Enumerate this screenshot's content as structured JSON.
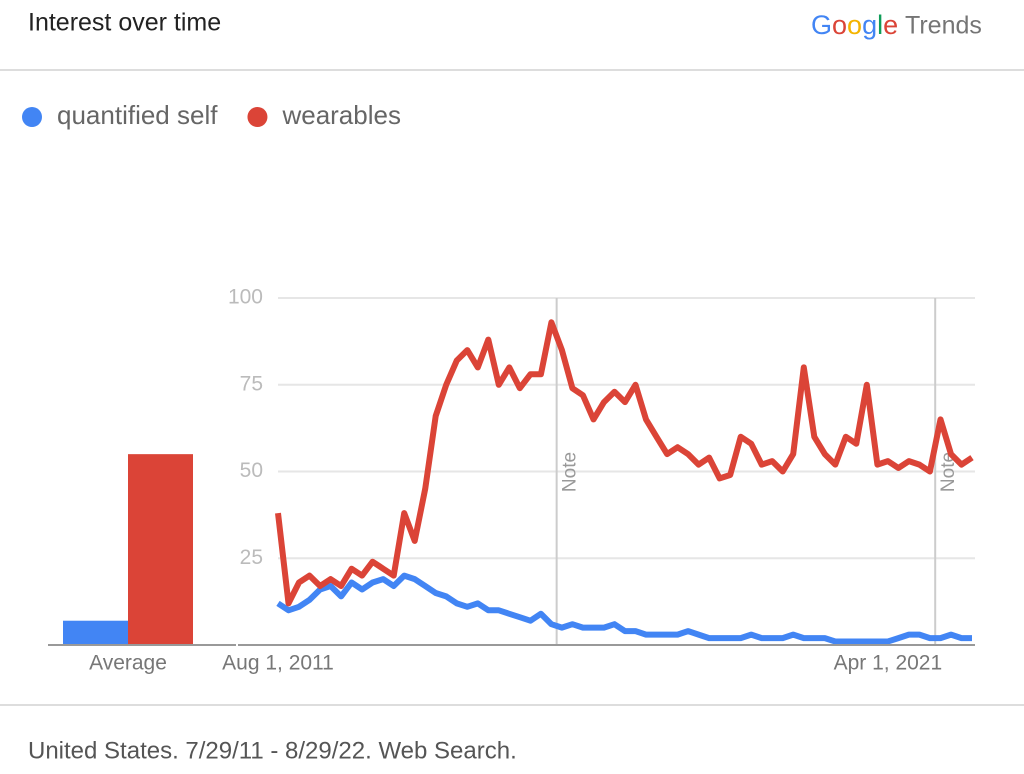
{
  "chart_data": {
    "type": "line",
    "title": "Interest over time",
    "brand": {
      "logo": "Google",
      "logo_colors": [
        "#4285f4",
        "#db4437",
        "#f4b400",
        "#4285f4",
        "#0f9d58",
        "#db4437"
      ],
      "product": "Trends"
    },
    "footer": "United States. 7/29/11 - 8/29/22. Web Search.",
    "x": [
      "2011-08-01",
      "2011-10-01",
      "2011-12-01",
      "2012-02-01",
      "2012-04-01",
      "2012-06-01",
      "2012-08-01",
      "2012-10-01",
      "2012-12-01",
      "2013-02-01",
      "2013-04-01",
      "2013-06-01",
      "2013-08-01",
      "2013-10-01",
      "2013-12-01",
      "2014-02-01",
      "2014-04-01",
      "2014-06-01",
      "2014-08-01",
      "2014-10-01",
      "2014-12-01",
      "2015-02-01",
      "2015-04-01",
      "2015-06-01",
      "2015-08-01",
      "2015-10-01",
      "2015-12-01",
      "2016-02-01",
      "2016-04-01",
      "2016-06-01",
      "2016-08-01",
      "2016-10-01",
      "2016-12-01",
      "2017-02-01",
      "2017-04-01",
      "2017-06-01",
      "2017-08-01",
      "2017-10-01",
      "2017-12-01",
      "2018-02-01",
      "2018-04-01",
      "2018-06-01",
      "2018-08-01",
      "2018-10-01",
      "2018-12-01",
      "2019-02-01",
      "2019-04-01",
      "2019-06-01",
      "2019-08-01",
      "2019-10-01",
      "2019-12-01",
      "2020-02-01",
      "2020-04-01",
      "2020-06-01",
      "2020-08-01",
      "2020-10-01",
      "2020-12-01",
      "2021-02-01",
      "2021-04-01",
      "2021-06-01",
      "2021-08-01",
      "2021-10-01",
      "2021-12-01",
      "2022-02-01",
      "2022-04-01",
      "2022-06-01",
      "2022-08-01"
    ],
    "series": [
      {
        "name": "quantified self",
        "color": "#4285f4",
        "values": [
          12,
          10,
          11,
          13,
          16,
          17,
          14,
          18,
          16,
          18,
          19,
          17,
          20,
          19,
          17,
          15,
          14,
          12,
          11,
          12,
          10,
          10,
          9,
          8,
          7,
          9,
          6,
          5,
          6,
          5,
          5,
          5,
          6,
          4,
          4,
          3,
          3,
          3,
          3,
          4,
          3,
          2,
          2,
          2,
          2,
          3,
          2,
          2,
          2,
          3,
          2,
          2,
          2,
          1,
          1,
          1,
          1,
          1,
          1,
          2,
          3,
          3,
          2,
          2,
          3,
          2,
          2
        ]
      },
      {
        "name": "wearables",
        "color": "#db4437",
        "values": [
          38,
          12,
          18,
          20,
          17,
          19,
          17,
          22,
          20,
          24,
          22,
          20,
          38,
          30,
          45,
          66,
          75,
          82,
          85,
          80,
          88,
          75,
          80,
          74,
          78,
          78,
          93,
          85,
          74,
          72,
          65,
          70,
          73,
          70,
          75,
          65,
          60,
          55,
          57,
          55,
          52,
          54,
          48,
          49,
          60,
          58,
          52,
          53,
          50,
          55,
          80,
          60,
          55,
          52,
          60,
          58,
          75,
          52,
          53,
          51,
          53,
          52,
          50,
          65,
          55,
          52,
          54
        ]
      }
    ],
    "xlim": [
      "2011-08-01",
      "2022-08-01"
    ],
    "xticks": [
      {
        "value": "2011-08-01",
        "label": "Aug 1, 2011"
      },
      {
        "value": "2021-04-01",
        "label": "Apr 1, 2021"
      }
    ],
    "ylim": [
      0,
      100
    ],
    "yticks": [
      25,
      50,
      75,
      100
    ],
    "grid": true,
    "annotations": [
      {
        "x": "2016-01-01",
        "label": "Note"
      },
      {
        "x": "2022-01-01",
        "label": "Note"
      }
    ],
    "average": {
      "label": "Average",
      "values": [
        7,
        55
      ]
    }
  }
}
